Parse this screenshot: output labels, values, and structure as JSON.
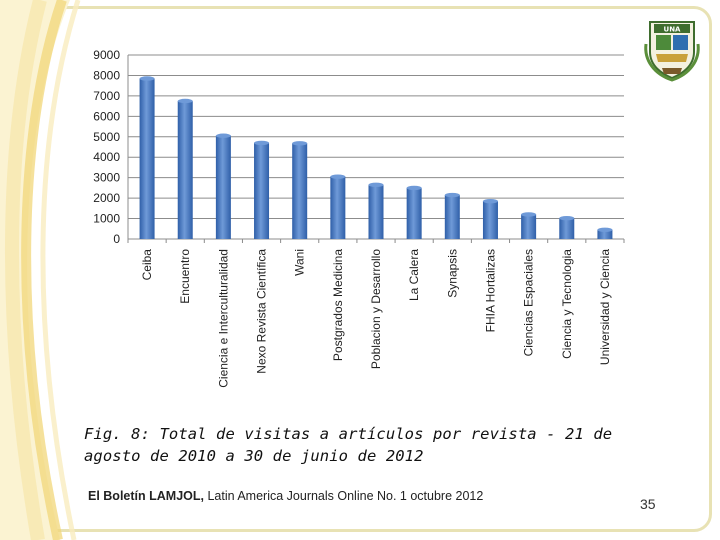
{
  "slide": {
    "caption": "Fig. 8: Total de visitas a artículos por revista - 21 de agosto de 2010 a 30 de junio de 2012",
    "footer_bold": "El Boletín LAMJOL,",
    "footer_rest": " Latin America Journals Online No. 1 octubre 2012",
    "page_number": "35",
    "logo_text": "UNA"
  },
  "colors": {
    "bar": "#2f5fa8",
    "bar_highlight": "#6f9ad8",
    "grid": "#8c8c8c",
    "frame": "#e8e2b4",
    "swoosh": "#f2d77a"
  },
  "chart_data": {
    "type": "bar",
    "categories": [
      "Ceiba",
      "Encuentro",
      "Ciencia e Interculturalidad",
      "Nexo Revista Científica",
      "Wani",
      "Postgrados Medicina",
      "Poblacion y Desarrollo",
      "La Calera",
      "Synapsis",
      "FHIA Hortalizas",
      "Ciencias Espaciales",
      "Ciencia y Tecnologia",
      "Universidad y Ciencia"
    ],
    "values": [
      7850,
      6750,
      5050,
      4700,
      4680,
      3050,
      2650,
      2500,
      2150,
      1850,
      1200,
      1020,
      450
    ],
    "yticks": [
      "0",
      "1000",
      "2000",
      "3000",
      "4000",
      "5000",
      "6000",
      "7000",
      "8000",
      "9000"
    ],
    "ylim": [
      0,
      9000
    ],
    "grid": true,
    "legend": "none"
  }
}
